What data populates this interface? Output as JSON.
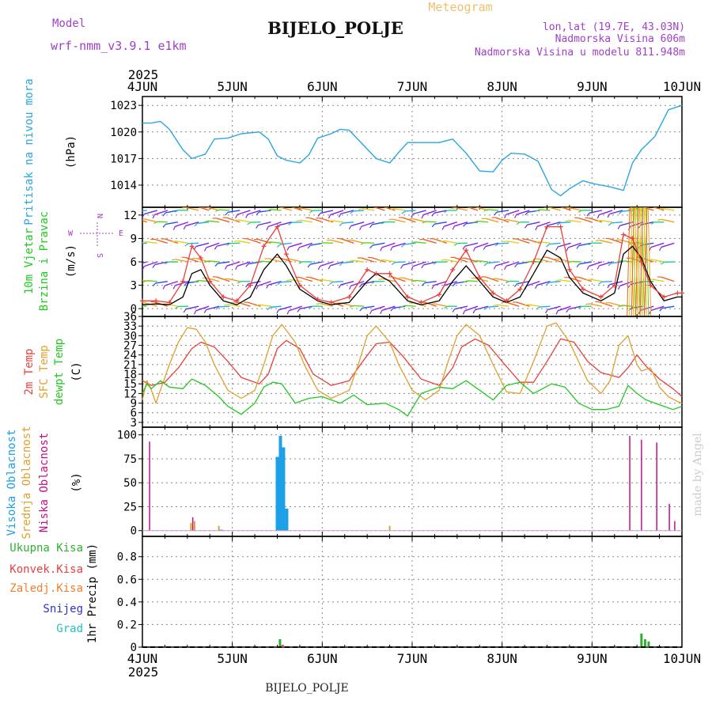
{
  "header": {
    "model_label": "Model",
    "model_value": "wrf-nmm_v3.9.1 e1km",
    "title": "BIJELO_POLJE",
    "subtitle": "Meteogram",
    "lonlat": "lon,lat (19.7E, 43.03N)",
    "elevation": "Nadmorska Visina 606m",
    "model_elevation": "Nadmorska Visina u modelu 811.948m",
    "footer_station": "BIJELO_POLJE",
    "watermark": "made by Angel"
  },
  "colors": {
    "pressure": "#2aa6e0",
    "t2m": "#e8403a",
    "tsfc": "#e0a030",
    "dewpt": "#22c822",
    "high_cloud": "#1ca0e8",
    "mid_cloud": "#e0a030",
    "low_cloud": "#c0108a",
    "total_precip": "#30b030",
    "conv_precip": "#e84040",
    "frz_precip": "#f08030",
    "snow": "#3030d0",
    "graupel": "#20c0c0",
    "purple_text": "#a040c8",
    "orange_text": "#f0c070"
  },
  "chart_data": [
    {
      "panel": "pressure",
      "type": "line",
      "ylabel": "Pritisak na nivou mora",
      "unit": "(hPa)",
      "yticks": [
        1014,
        1017,
        1020,
        1023
      ],
      "ylim": [
        1011.5,
        1024
      ],
      "xlim": [
        0,
        6
      ],
      "x_top_ticks": [
        "4JUN",
        "5JUN",
        "6JUN",
        "7JUN",
        "8JUN",
        "9JUN",
        "10JUN"
      ],
      "x_top_year": "2025",
      "series": [
        {
          "x": [
            0,
            0.1,
            0.2,
            0.3,
            0.45,
            0.55,
            0.7,
            0.8,
            0.95,
            1.1,
            1.3,
            1.4,
            1.5,
            1.6,
            1.75,
            1.85,
            1.95,
            2.1,
            2.2,
            2.3,
            2.45,
            2.6,
            2.75,
            2.85,
            2.95,
            3.1,
            3.3,
            3.45,
            3.6,
            3.75,
            3.9,
            4.0,
            4.1,
            4.25,
            4.4,
            4.55,
            4.65,
            4.75,
            4.9,
            5.0,
            5.1,
            5.2,
            5.35,
            5.45,
            5.55,
            5.7,
            5.85,
            6.0
          ],
          "values": [
            1021.0,
            1021.0,
            1021.2,
            1020.3,
            1018.0,
            1017.0,
            1017.5,
            1019.2,
            1019.3,
            1019.8,
            1020.0,
            1019.2,
            1017.3,
            1016.8,
            1016.5,
            1017.4,
            1019.3,
            1019.8,
            1020.3,
            1020.2,
            1018.6,
            1017.0,
            1016.5,
            1017.7,
            1018.8,
            1018.8,
            1018.8,
            1019.2,
            1017.6,
            1015.6,
            1015.5,
            1016.8,
            1017.6,
            1017.5,
            1016.7,
            1013.5,
            1012.8,
            1013.6,
            1014.5,
            1014.2,
            1014.0,
            1013.8,
            1013.4,
            1016.5,
            1018.0,
            1019.5,
            1022.5,
            1023.0
          ]
        }
      ]
    },
    {
      "panel": "wind",
      "type": "line",
      "ylabel_1": "10m Vjetar",
      "ylabel_2": "Brzina i Pravac",
      "unit": "(m/s)",
      "compass": [
        "N",
        "E",
        "S",
        "W"
      ],
      "yticks": [
        0,
        3,
        6,
        9,
        12
      ],
      "ylim": [
        -1,
        13
      ],
      "xlim": [
        0,
        6
      ],
      "series": [
        {
          "name": "speed",
          "x": [
            0,
            0.15,
            0.3,
            0.45,
            0.55,
            0.65,
            0.75,
            0.9,
            1.05,
            1.2,
            1.35,
            1.5,
            1.6,
            1.75,
            1.95,
            2.1,
            2.3,
            2.5,
            2.6,
            2.75,
            2.95,
            3.1,
            3.3,
            3.45,
            3.6,
            3.75,
            3.9,
            4.05,
            4.2,
            4.35,
            4.5,
            4.65,
            4.75,
            4.9,
            5.1,
            5.25,
            5.35,
            5.45,
            5.55,
            5.65,
            5.8,
            5.95,
            6.0
          ],
          "values": [
            0.5,
            0.6,
            0.5,
            1.5,
            4.5,
            5.0,
            3.0,
            1.0,
            0.5,
            1.5,
            5.0,
            7.0,
            5.5,
            2.5,
            1.0,
            0.5,
            0.8,
            3.5,
            4.5,
            3.5,
            1.0,
            0.5,
            1.0,
            3.5,
            5.5,
            3.5,
            1.5,
            0.8,
            1.5,
            4.5,
            7.5,
            6.5,
            4.0,
            2.0,
            1.0,
            2.0,
            7.0,
            8.0,
            6.5,
            3.5,
            1.0,
            1.5,
            1.5
          ]
        },
        {
          "name": "gust",
          "x": [
            0,
            0.15,
            0.3,
            0.45,
            0.55,
            0.65,
            0.75,
            0.9,
            1.05,
            1.2,
            1.35,
            1.5,
            1.6,
            1.75,
            1.95,
            2.1,
            2.3,
            2.5,
            2.6,
            2.75,
            2.95,
            3.1,
            3.3,
            3.45,
            3.6,
            3.75,
            3.9,
            4.05,
            4.2,
            4.35,
            4.5,
            4.65,
            4.75,
            4.9,
            5.1,
            5.25,
            5.35,
            5.45,
            5.55,
            5.65,
            5.8,
            5.95,
            6.0
          ],
          "values": [
            1.0,
            1.0,
            0.8,
            3.5,
            8.0,
            6.5,
            3.5,
            1.5,
            1.0,
            3.0,
            8.0,
            10.5,
            7.0,
            3.0,
            1.2,
            0.8,
            1.5,
            5.0,
            4.5,
            4.5,
            1.5,
            0.8,
            1.8,
            5.0,
            7.5,
            4.0,
            2.0,
            1.0,
            2.5,
            6.0,
            10.5,
            10.5,
            5.0,
            2.5,
            1.5,
            3.0,
            9.5,
            9.0,
            6.0,
            3.0,
            1.5,
            2.0,
            2.0
          ]
        }
      ]
    },
    {
      "panel": "temperature",
      "type": "line",
      "ylabel_1": "2m Temp",
      "ylabel_2": "SFC Temp",
      "ylabel_3": "dewpt Temp",
      "unit": "(C)",
      "yticks": [
        3,
        6,
        9,
        12,
        15,
        18,
        21,
        24,
        27,
        30,
        33,
        36
      ],
      "ylim": [
        1.5,
        36
      ],
      "xlim": [
        0,
        6
      ],
      "series": [
        {
          "name": "2m Temp",
          "x": [
            0,
            0.1,
            0.25,
            0.4,
            0.55,
            0.65,
            0.8,
            0.95,
            1.1,
            1.3,
            1.4,
            1.5,
            1.6,
            1.75,
            1.9,
            2.1,
            2.3,
            2.45,
            2.6,
            2.75,
            2.9,
            3.1,
            3.3,
            3.45,
            3.55,
            3.7,
            3.85,
            4.0,
            4.2,
            4.35,
            4.5,
            4.65,
            4.8,
            4.95,
            5.1,
            5.3,
            5.4,
            5.5,
            5.6,
            5.75,
            5.9,
            6.0
          ],
          "values": [
            16,
            14.5,
            15.5,
            20,
            26,
            28,
            26.5,
            22,
            17,
            15,
            18,
            26,
            28.5,
            26,
            18,
            14.5,
            16,
            22,
            27.5,
            28,
            23.5,
            16.5,
            14.5,
            20,
            26.5,
            29,
            27,
            22,
            15.5,
            15.5,
            22,
            29,
            28,
            22,
            18.5,
            17,
            20,
            24,
            20.5,
            16.5,
            13.5,
            11
          ]
        },
        {
          "name": "SFC Temp",
          "x": [
            0,
            0.05,
            0.1,
            0.15,
            0.2,
            0.3,
            0.4,
            0.5,
            0.6,
            0.7,
            0.8,
            0.95,
            1.1,
            1.25,
            1.35,
            1.45,
            1.55,
            1.7,
            1.8,
            1.95,
            2.1,
            2.3,
            2.4,
            2.5,
            2.6,
            2.75,
            2.85,
            3.0,
            3.15,
            3.3,
            3.4,
            3.5,
            3.6,
            3.75,
            3.9,
            4.05,
            4.2,
            4.35,
            4.5,
            4.6,
            4.75,
            4.95,
            5.1,
            5.2,
            5.3,
            5.4,
            5.5,
            5.55,
            5.65,
            5.75,
            5.85,
            5.95,
            6.0
          ],
          "values": [
            10,
            16,
            13,
            9,
            13,
            21,
            28,
            32.5,
            32,
            28,
            21,
            13,
            10.5,
            13,
            21,
            30,
            33.5,
            28,
            21,
            13,
            10.5,
            13,
            21,
            30,
            33,
            28,
            21,
            13,
            10,
            13,
            22,
            30,
            33.5,
            30,
            21,
            12.5,
            12,
            22,
            33,
            34,
            28,
            16,
            12,
            16,
            27,
            30,
            21,
            19,
            20,
            14,
            11,
            9.5,
            9
          ]
        },
        {
          "name": "dewpt Temp",
          "x": [
            0,
            0.05,
            0.1,
            0.2,
            0.3,
            0.45,
            0.55,
            0.7,
            0.85,
            0.95,
            1.1,
            1.25,
            1.35,
            1.45,
            1.55,
            1.7,
            1.85,
            2.0,
            2.2,
            2.35,
            2.5,
            2.7,
            2.85,
            2.95,
            3.1,
            3.3,
            3.45,
            3.6,
            3.75,
            3.9,
            4.05,
            4.2,
            4.35,
            4.55,
            4.7,
            4.85,
            5.0,
            5.15,
            5.3,
            5.4,
            5.5,
            5.6,
            5.75,
            5.9,
            6.0
          ],
          "values": [
            12,
            15,
            13.5,
            16,
            14,
            13.5,
            16.5,
            14.5,
            11,
            8,
            5.5,
            9,
            14,
            15.5,
            15,
            9,
            10.5,
            11,
            9,
            11.5,
            8.5,
            9,
            7,
            5,
            12,
            14,
            13.5,
            16,
            13,
            10,
            14.5,
            15.5,
            12,
            15,
            14,
            9,
            7,
            7,
            8,
            14.5,
            12,
            10,
            8.5,
            7,
            8
          ]
        }
      ]
    },
    {
      "panel": "clouds",
      "type": "bar",
      "ylabel_1": "Visoka Oblacnost",
      "ylabel_2": "Srednja Oblacnost",
      "ylabel_3": "Niska Oblacnost",
      "unit": "(%)",
      "yticks": [
        0,
        25,
        50,
        75,
        100
      ],
      "ylim": [
        -6,
        108
      ],
      "xlim": [
        0,
        6
      ],
      "series": [
        {
          "name": "Visoka Oblacnost",
          "x": [
            0.875,
            1.5,
            1.535,
            1.57,
            1.605
          ],
          "values": [
            1,
            77,
            99,
            87,
            23
          ]
        },
        {
          "name": "Srednja Oblacnost",
          "x": [
            0.54,
            0.58,
            0.85,
            2.75
          ],
          "values": [
            8,
            10,
            5,
            5
          ]
        },
        {
          "name": "Niska Oblacnost",
          "x": [
            0.08,
            0.56,
            5.42,
            5.55,
            5.72,
            5.86,
            5.92
          ],
          "values": [
            93,
            14,
            99,
            95,
            92,
            28,
            10
          ]
        }
      ]
    },
    {
      "panel": "precip",
      "type": "bar",
      "ylabel": "1hr Precip",
      "unit": "(mm)",
      "legend": [
        "Ukupna Kisa",
        "Konvek.Kisa",
        "Zaledj.Kisa",
        "Snijeg",
        "Grad"
      ],
      "yticks": [
        0,
        0.2,
        0.4,
        0.6,
        0.8
      ],
      "ylim": [
        0,
        0.98
      ],
      "xlim": [
        0,
        6
      ],
      "x_bottom_ticks": [
        "4JUN",
        "5JUN",
        "6JUN",
        "7JUN",
        "8JUN",
        "9JUN",
        "10JUN"
      ],
      "x_bottom_year": "2025",
      "series": [
        {
          "name": "Ukupna Kisa",
          "x": [
            1.53,
            5.55,
            5.59,
            5.63
          ],
          "values": [
            0.07,
            0.12,
            0.07,
            0.05
          ]
        },
        {
          "name": "Konvek.Kisa",
          "x": [
            1.56
          ],
          "values": [
            0.02
          ]
        }
      ]
    }
  ]
}
